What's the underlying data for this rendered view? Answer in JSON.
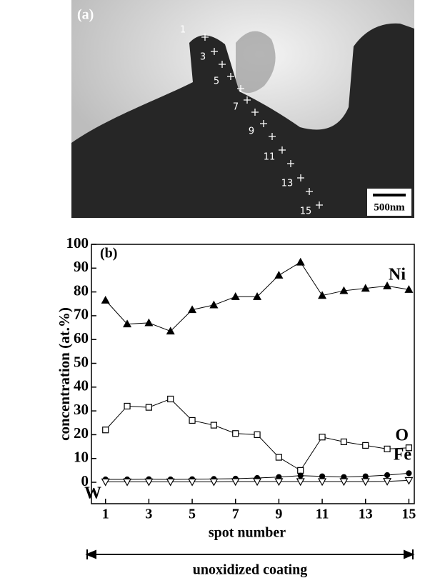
{
  "image": {
    "label": "(a)",
    "spot_labels": [
      "1",
      "3",
      "5",
      "7",
      "9",
      "11",
      "13",
      "15"
    ],
    "scale_bar": "500nm"
  },
  "chart_data": {
    "type": "line",
    "annotation": "(b)",
    "ylabel": "concentration (at.%)",
    "xlabel": "spot number",
    "range_label": "unoxidized coating",
    "x": [
      1,
      2,
      3,
      4,
      5,
      6,
      7,
      8,
      9,
      10,
      11,
      12,
      13,
      14,
      15
    ],
    "xlim": [
      0.35,
      15.25
    ],
    "xticks": [
      1,
      3,
      5,
      7,
      9,
      11,
      13,
      15
    ],
    "ylim": [
      -9,
      100
    ],
    "yticks": [
      0,
      10,
      20,
      30,
      40,
      50,
      60,
      70,
      80,
      90,
      100
    ],
    "series": [
      {
        "name": "Ni",
        "color": "#000000",
        "marker": "triangle-filled",
        "values": [
          76.5,
          66.5,
          67,
          63.5,
          72.5,
          74.5,
          78,
          78,
          87,
          92.5,
          78.5,
          80.5,
          81.5,
          82.5,
          81
        ]
      },
      {
        "name": "O",
        "color": "#000000",
        "marker": "square-open",
        "values": [
          22,
          32,
          31.5,
          35,
          26,
          24,
          20.5,
          20,
          10.5,
          5,
          19,
          17,
          15.5,
          14,
          14.5
        ]
      },
      {
        "name": "Fe",
        "color": "#000000",
        "marker": "circle-filled",
        "values": [
          1.2,
          1.2,
          1.3,
          1.2,
          1.3,
          1.4,
          1.5,
          1.8,
          2.2,
          2.8,
          2.5,
          2.2,
          2.5,
          3,
          3.8
        ]
      },
      {
        "name": "W",
        "color": "#000000",
        "marker": "triangle-down-open",
        "values": [
          0.2,
          0.2,
          0.2,
          0.2,
          0.2,
          0.2,
          0.3,
          0.3,
          0.3,
          0.3,
          0.3,
          0.3,
          0.3,
          0.4,
          0.8
        ]
      }
    ]
  }
}
